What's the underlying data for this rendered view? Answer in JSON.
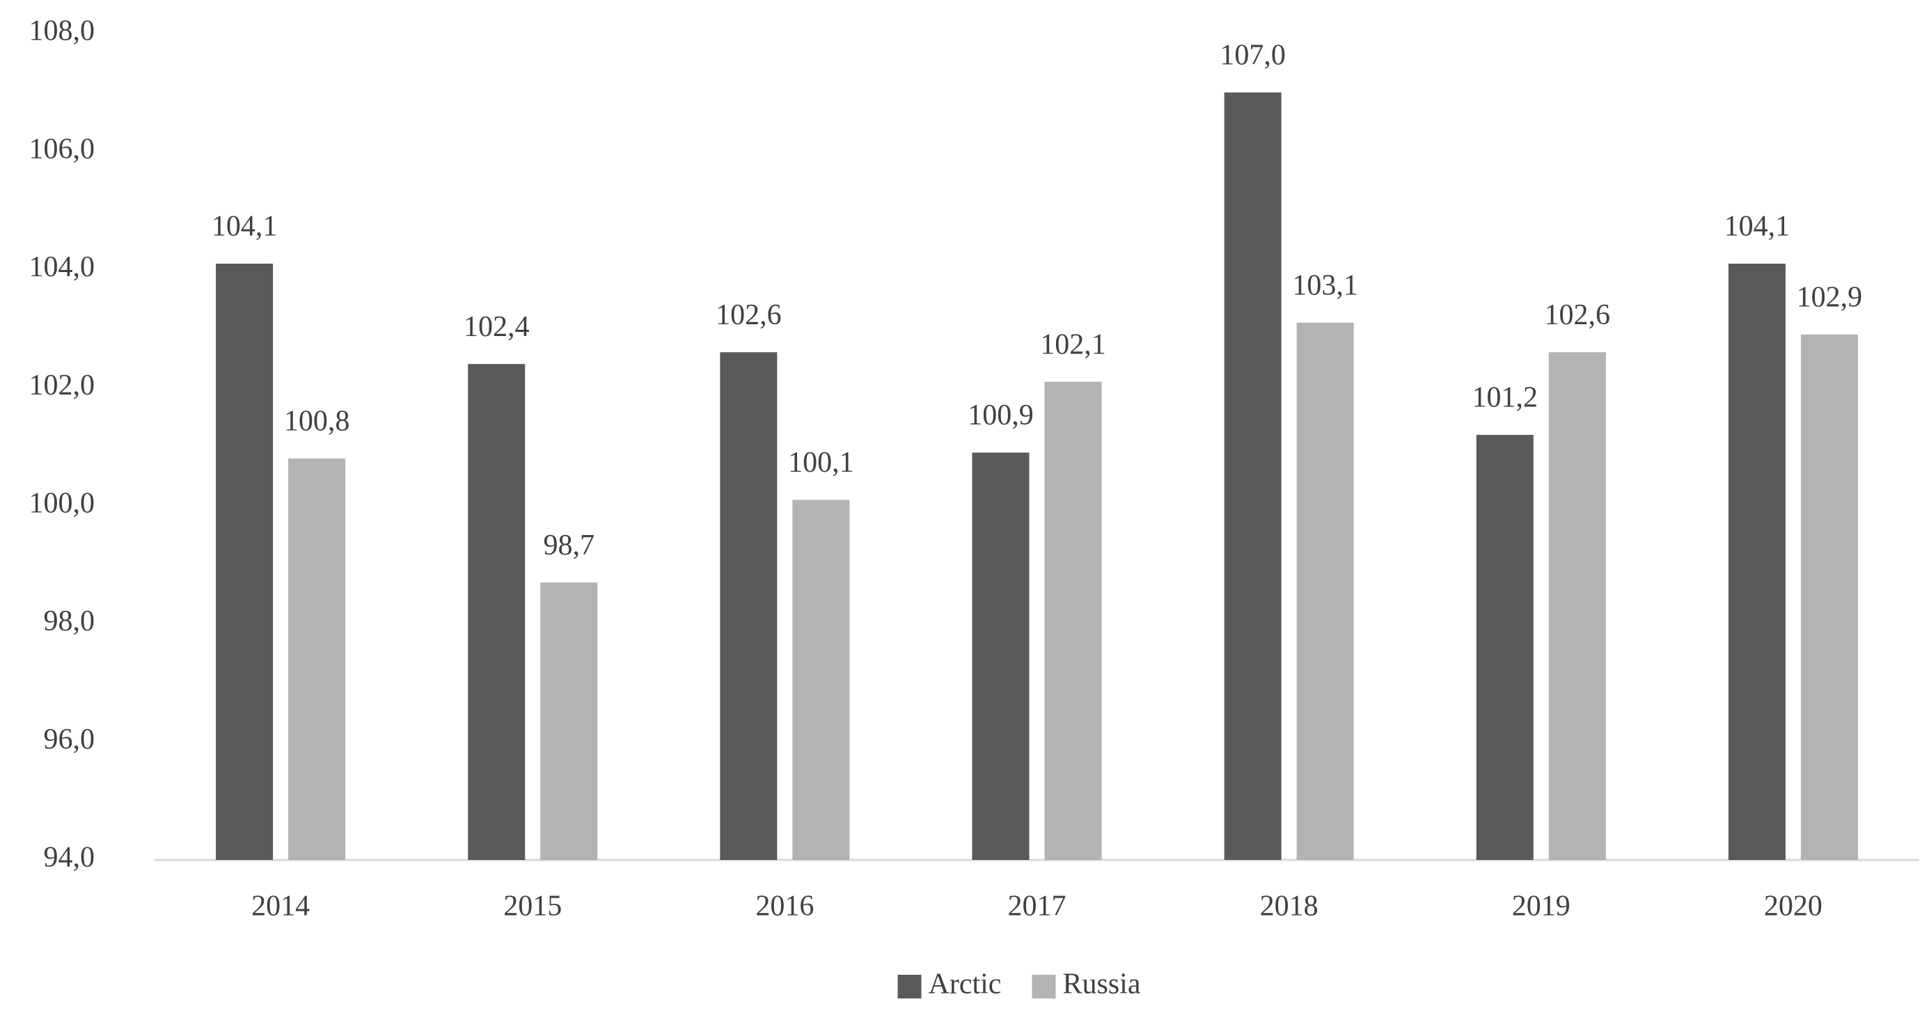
{
  "chart_data": {
    "type": "bar",
    "categories": [
      "2014",
      "2015",
      "2016",
      "2017",
      "2018",
      "2019",
      "2020"
    ],
    "series": [
      {
        "name": "Arctic",
        "color": "#595959",
        "values": [
          104.1,
          102.4,
          102.6,
          100.9,
          107.0,
          101.2,
          104.1
        ],
        "value_labels": [
          "104,1",
          "102,4",
          "102,6",
          "100,9",
          "107,0",
          "101,2",
          "104,1"
        ]
      },
      {
        "name": "Russia",
        "color": "#b3b3b3",
        "values": [
          100.8,
          98.7,
          100.1,
          102.1,
          103.1,
          102.6,
          102.9
        ],
        "value_labels": [
          "100,8",
          "98,7",
          "100,1",
          "102,1",
          "103,1",
          "102,6",
          "102,9"
        ]
      }
    ],
    "ylim": [
      94,
      108
    ],
    "yticks": [
      {
        "value": 94,
        "label": "94,0"
      },
      {
        "value": 96,
        "label": "96,0"
      },
      {
        "value": 98,
        "label": "98,0"
      },
      {
        "value": 100,
        "label": "100,0"
      },
      {
        "value": 102,
        "label": "102,0"
      },
      {
        "value": 104,
        "label": "104,0"
      },
      {
        "value": 106,
        "label": "106,0"
      },
      {
        "value": 108,
        "label": "108,0"
      }
    ],
    "grid": false,
    "legend": "bottom"
  }
}
